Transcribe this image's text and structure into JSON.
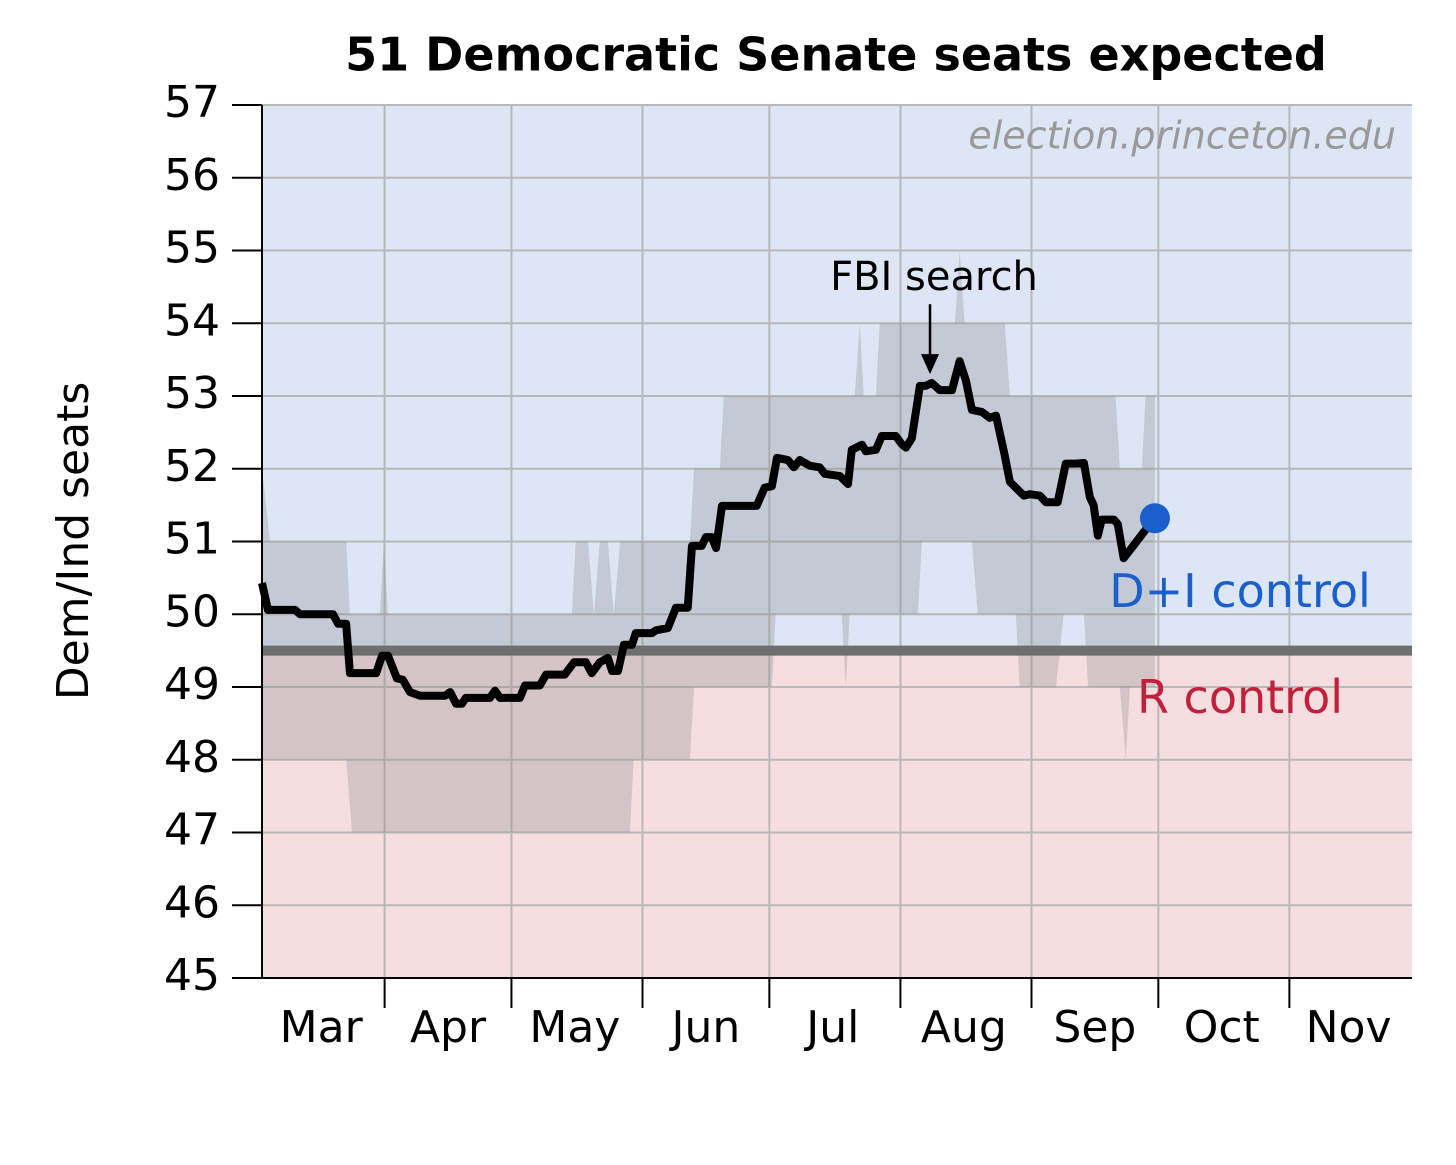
{
  "chart_data": {
    "type": "line",
    "title": "51 Democratic Senate seats expected",
    "ylabel": "Dem/Ind seats",
    "watermark": "election.princeton.edu",
    "annotations": [
      {
        "text": "FBI search",
        "x": 220,
        "y": 53.3
      }
    ],
    "above_label": "D+I control",
    "below_label": "R control",
    "threshold": 49.5,
    "color": "#000000",
    "marker_color": "#1a5fcc",
    "above_color": "#dce6f5",
    "below_color": "#f5dde0",
    "band_color": "#8a8a8a",
    "threshold_color": "#6e6e6e",
    "above_label_color": "#1a5fcc",
    "below_label_color": "#c0203a",
    "grid": true,
    "xlim": [
      62,
      334
    ],
    "ylim": [
      45,
      57
    ],
    "yticks": [
      45,
      46,
      47,
      48,
      49,
      50,
      51,
      52,
      53,
      54,
      55,
      56,
      57
    ],
    "xticks": [
      91,
      121,
      152,
      182,
      213,
      244,
      274,
      305
    ],
    "xtick_labels": [
      {
        "value": 76,
        "label": "Mar"
      },
      {
        "value": 106,
        "label": "Apr"
      },
      {
        "value": 136,
        "label": "May"
      },
      {
        "value": 167,
        "label": "Jun"
      },
      {
        "value": 197,
        "label": "Jul"
      },
      {
        "value": 228,
        "label": "Aug"
      },
      {
        "value": 259,
        "label": "Sep"
      },
      {
        "value": 289,
        "label": "Oct"
      },
      {
        "value": 319,
        "label": "Nov"
      }
    ],
    "x": [
      62,
      63.4,
      69.8,
      71,
      78.8,
      80,
      81.9,
      82.8,
      89,
      90.4,
      91.8,
      93.9,
      95.3,
      97,
      99.4,
      105.3,
      106.5,
      107.9,
      109.3,
      110.2,
      115.9,
      117.1,
      118.3,
      123,
      124.2,
      127.7,
      129.2,
      133.6,
      135.8,
      138.6,
      140,
      141.9,
      143.8,
      144.8,
      146.2,
      147.6,
      149.5,
      150.4,
      154.2,
      155.2,
      158,
      159.9,
      162.7,
      163.7,
      166,
      167,
      168.4,
      169.4,
      170.8,
      179,
      180.9,
      182.6,
      183.8,
      186.4,
      187.8,
      189.2,
      191.6,
      193.9,
      195.1,
      198.7,
      200.6,
      201.5,
      203.9,
      204.8,
      207.2,
      208.6,
      211.9,
      213.3,
      214.3,
      215.7,
      217.6,
      219,
      220.4,
      222.3,
      225.2,
      227,
      228.5,
      229.9,
      232.3,
      234.1,
      235.6,
      237.5,
      238.9,
      240.8,
      242.2,
      243.6,
      246,
      247.4,
      250.2,
      252.1,
      254.5,
      256.4,
      257.8,
      258.7,
      259.7,
      260.6,
      263.5,
      264.4,
      265.8,
      268.2,
      271.5,
      273.2
    ],
    "values": [
      50.43,
      50.06,
      50.06,
      50.0,
      50.0,
      49.87,
      49.87,
      49.19,
      49.19,
      49.43,
      49.43,
      49.12,
      49.1,
      48.93,
      48.88,
      48.88,
      48.93,
      48.77,
      48.77,
      48.85,
      48.85,
      48.95,
      48.85,
      48.85,
      49.02,
      49.02,
      49.17,
      49.17,
      49.34,
      49.34,
      49.19,
      49.34,
      49.4,
      49.22,
      49.22,
      49.58,
      49.58,
      49.74,
      49.74,
      49.78,
      49.81,
      50.09,
      50.09,
      50.94,
      50.94,
      51.06,
      51.06,
      50.91,
      51.49,
      51.49,
      51.74,
      51.76,
      52.15,
      52.12,
      52.02,
      52.12,
      52.04,
      52.02,
      51.93,
      51.9,
      51.79,
      52.26,
      52.33,
      52.24,
      52.26,
      52.45,
      52.45,
      52.34,
      52.29,
      52.42,
      53.14,
      53.14,
      53.18,
      53.08,
      53.08,
      53.48,
      53.21,
      52.81,
      52.78,
      52.7,
      52.73,
      52.23,
      51.82,
      51.71,
      51.63,
      51.65,
      51.63,
      51.54,
      51.54,
      52.07,
      52.07,
      52.08,
      51.61,
      51.5,
      51.08,
      51.3,
      51.3,
      51.24,
      50.77,
      50.95,
      51.2,
      51.32
    ],
    "range_upper": {
      "x": [
        62,
        63.9,
        81.9,
        82.8,
        89.9,
        90.8,
        91.8,
        135.3,
        136.2,
        139.1,
        140.5,
        141.9,
        143.8,
        145.2,
        146.7,
        163.2,
        164.2,
        170.3,
        171.2,
        202.2,
        203.4,
        204.3,
        207.2,
        208.1,
        225.9,
        227,
        228.2,
        237.7,
        238.9,
        263.9,
        264.9,
        270.1,
        271,
        273.2
      ],
      "values": [
        52,
        51,
        51,
        50,
        50,
        51,
        50,
        50,
        51,
        51,
        50,
        51,
        51,
        50,
        51,
        51,
        52,
        52,
        53,
        53,
        54,
        53,
        53,
        54,
        54,
        55,
        54,
        54,
        53,
        53,
        52,
        52,
        53,
        53
      ]
    },
    "range_lower": {
      "x": [
        62,
        81.9,
        83.3,
        149,
        149.9,
        163.2,
        164.2,
        182.6,
        183.5,
        199.1,
        200.1,
        201,
        217.1,
        218.1,
        229.9,
        231.3,
        240.3,
        241.2,
        249.8,
        251.6,
        256.4,
        257.4,
        264.9,
        266.3,
        267.3,
        273.2
      ],
      "values": [
        48,
        48,
        47,
        47,
        48,
        48,
        49,
        49,
        50,
        50,
        49,
        50,
        50,
        51,
        51,
        50,
        50,
        49,
        49,
        50,
        50,
        49,
        49,
        48,
        49,
        49
      ]
    }
  }
}
